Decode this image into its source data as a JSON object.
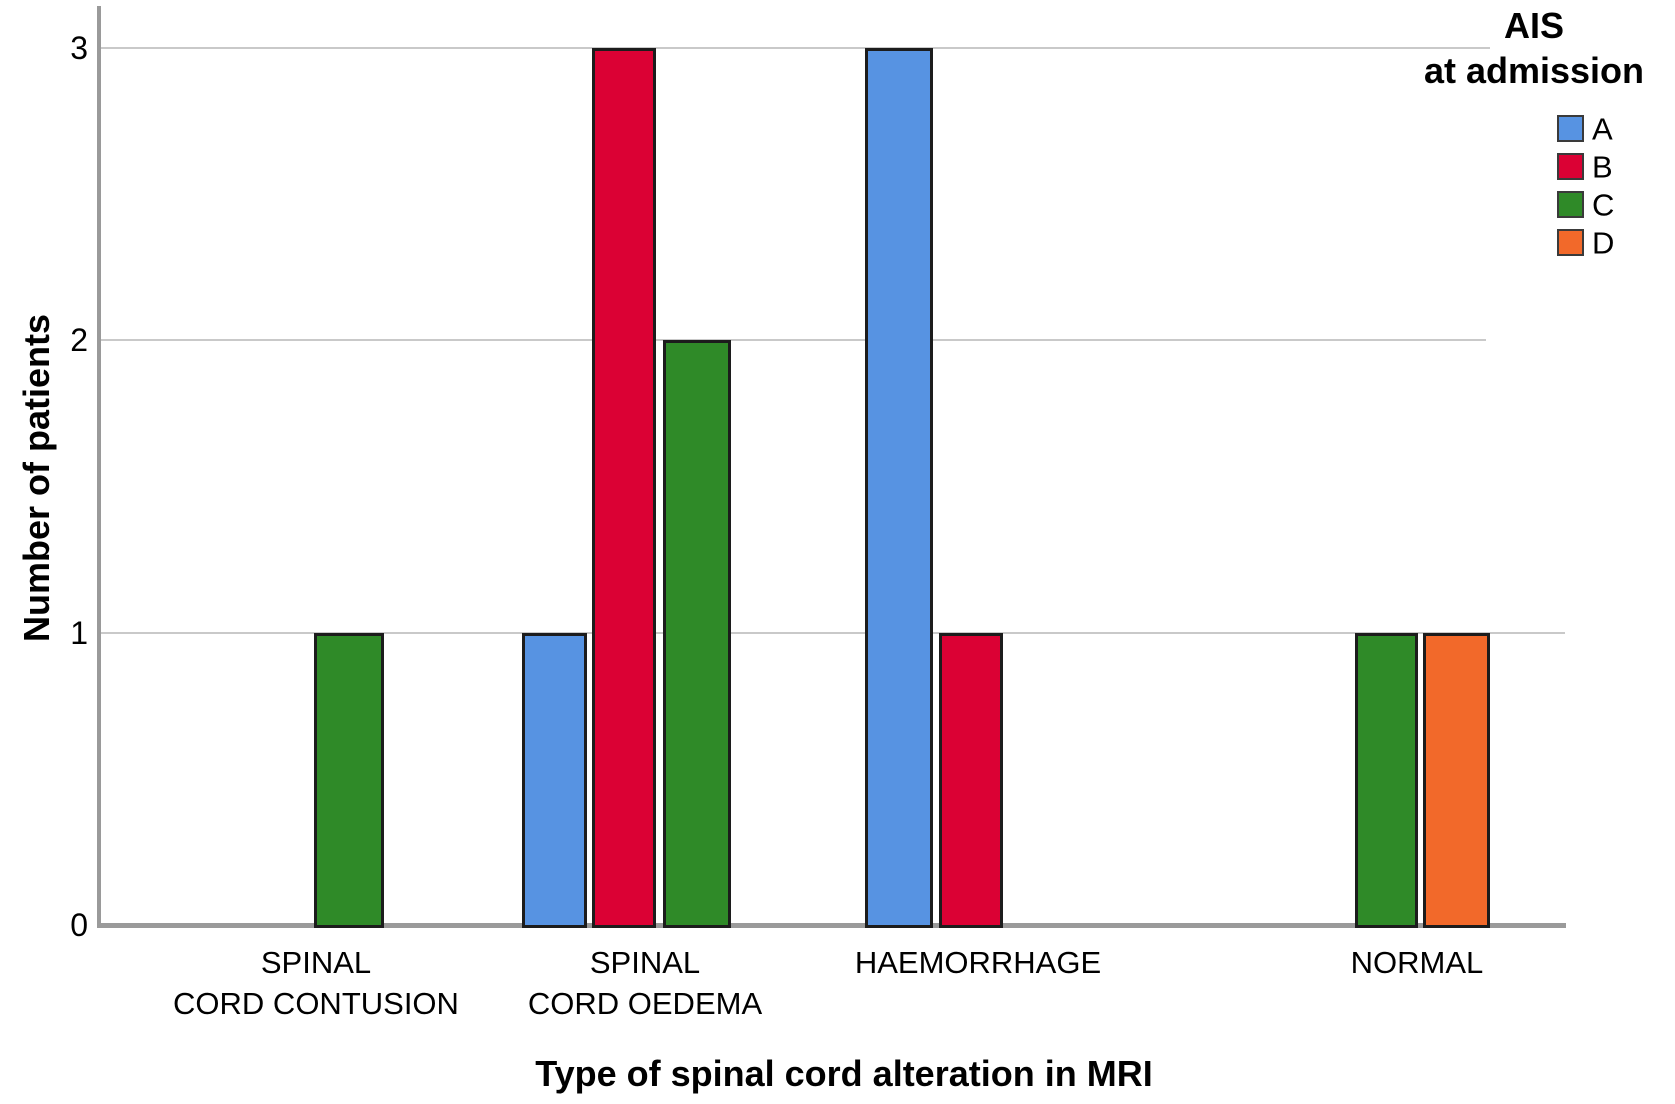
{
  "chart_data": {
    "type": "bar",
    "title": "",
    "xlabel": "Type of spinal cord alteration in MRI",
    "ylabel": "Number of patients",
    "categories": [
      "SPINAL CORD CONTUSION",
      "SPINAL CORD OEDEMA",
      "HAEMORRHAGE",
      "NORMAL"
    ],
    "category_label_lines": [
      [
        "SPINAL",
        "CORD CONTUSION"
      ],
      [
        "SPINAL",
        "CORD OEDEMA"
      ],
      [
        "HAEMORRHAGE"
      ],
      [
        "NORMAL"
      ]
    ],
    "series": [
      {
        "name": "A",
        "color": "#5793E2",
        "values": [
          0,
          1,
          3,
          0
        ]
      },
      {
        "name": "B",
        "color": "#DB0134",
        "values": [
          0,
          3,
          1,
          0
        ]
      },
      {
        "name": "C",
        "color": "#2F8A28",
        "values": [
          1,
          2,
          0,
          1
        ]
      },
      {
        "name": "D",
        "color": "#F2692A",
        "values": [
          0,
          0,
          0,
          1
        ]
      }
    ],
    "ylim": [
      0,
      3
    ],
    "yticks": [
      0,
      1,
      2,
      3
    ],
    "grid": "horizontal",
    "legend": {
      "title_lines": [
        "AIS",
        "at admission"
      ],
      "position": "top-right"
    }
  },
  "colors": {
    "grid": "#c9c9c9",
    "axis": "#9a9a9a",
    "bar_border": "#1c1c1c",
    "text": "#000000",
    "legend_swatch_border": "#3a3a3a"
  }
}
